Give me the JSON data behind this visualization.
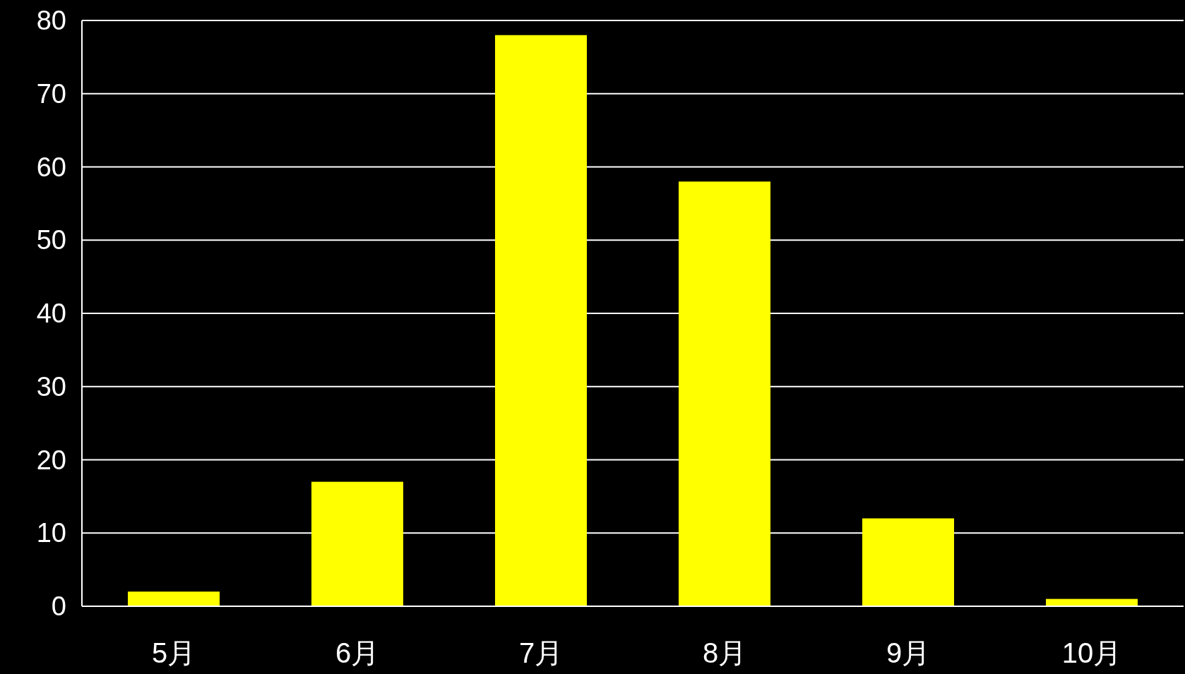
{
  "chart_data": {
    "type": "bar",
    "categories": [
      "5月",
      "6月",
      "7月",
      "8月",
      "9月",
      "10月"
    ],
    "values": [
      2,
      17,
      78,
      58,
      12,
      1
    ],
    "color": "#ffff00",
    "ylim": [
      0,
      80
    ],
    "yticks": [
      0,
      10,
      20,
      30,
      40,
      50,
      60,
      70,
      80
    ],
    "grid": "y"
  }
}
